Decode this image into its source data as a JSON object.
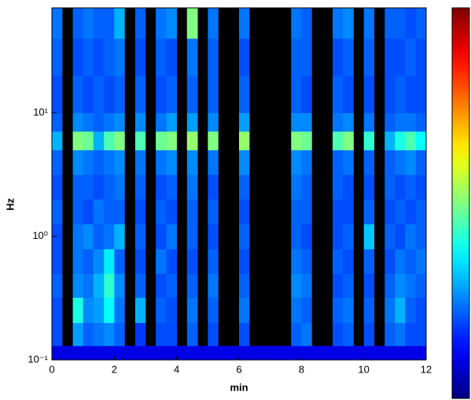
{
  "chart_data": {
    "type": "heatmap",
    "x_label": "min",
    "y_label": "Hz",
    "log_y": true,
    "xlim": [
      0,
      12
    ],
    "xticks": [
      0,
      2,
      4,
      6,
      8,
      10,
      12
    ],
    "ylim": [
      0.1,
      70.8
    ],
    "yticks": [
      {
        "value": 0.1,
        "label": "10⁻¹"
      },
      {
        "value": 1,
        "label": "10⁰"
      },
      {
        "value": 10,
        "label": "10¹"
      }
    ],
    "zlim": [
      0,
      1
    ],
    "colormap": "jet",
    "missing_color": "#000000",
    "xbins": [
      0,
      0.33,
      0.67,
      1,
      1.33,
      1.67,
      2,
      2.33,
      2.67,
      3,
      3.33,
      3.67,
      4,
      4.33,
      4.67,
      5,
      5.33,
      5.67,
      6,
      6.33,
      6.67,
      7,
      7.33,
      7.67,
      8,
      8.33,
      8.67,
      9,
      9.33,
      9.67,
      10,
      10.33,
      10.67,
      11,
      11.33,
      11.67,
      12
    ],
    "ybins": [
      0.1,
      0.13,
      0.2,
      0.32,
      0.5,
      0.79,
      1.26,
      2,
      3.16,
      5,
      7.08,
      10,
      20,
      40,
      70.8
    ],
    "z": [
      [
        0.1,
        0.1,
        0.1,
        0.1,
        0.1,
        0.1,
        0.1,
        0.1,
        0.1,
        0.1,
        0.1,
        0.1,
        0.1,
        0.1,
        0.1,
        0.1,
        0.1,
        0.1,
        0.1,
        0.1,
        0.1,
        0.1,
        0.1,
        0.1,
        0.1,
        0.1,
        0.1,
        0.1,
        0.1,
        0.1,
        0.1,
        0.1,
        0.1,
        0.1,
        0.1,
        0.1
      ],
      [
        0.2,
        null,
        0.28,
        0.22,
        0.24,
        0.26,
        0.22,
        null,
        0.18,
        null,
        0.2,
        0.2,
        null,
        0.22,
        null,
        0.2,
        null,
        null,
        0.2,
        null,
        null,
        null,
        null,
        0.22,
        0.24,
        null,
        null,
        0.2,
        0.22,
        null,
        0.2,
        null,
        0.22,
        0.24,
        0.2,
        0.2
      ],
      [
        0.2,
        null,
        0.4,
        0.26,
        0.28,
        0.38,
        0.24,
        null,
        0.3,
        null,
        0.22,
        0.2,
        null,
        0.24,
        null,
        0.22,
        null,
        null,
        0.24,
        null,
        null,
        null,
        null,
        0.24,
        0.22,
        null,
        null,
        0.22,
        0.24,
        null,
        0.22,
        null,
        0.24,
        0.3,
        0.22,
        0.2
      ],
      [
        0.22,
        null,
        0.26,
        0.24,
        0.3,
        0.42,
        0.26,
        null,
        0.22,
        null,
        0.2,
        0.22,
        null,
        0.22,
        null,
        0.24,
        null,
        null,
        0.22,
        null,
        null,
        null,
        null,
        0.26,
        0.24,
        null,
        null,
        0.2,
        0.22,
        null,
        0.2,
        null,
        0.22,
        0.26,
        0.24,
        0.22
      ],
      [
        0.2,
        null,
        0.24,
        0.22,
        0.26,
        0.36,
        0.22,
        null,
        0.2,
        null,
        0.24,
        0.2,
        null,
        0.2,
        null,
        0.22,
        null,
        null,
        0.2,
        null,
        null,
        null,
        null,
        0.24,
        0.22,
        null,
        null,
        0.22,
        0.2,
        null,
        0.22,
        null,
        0.2,
        0.24,
        0.22,
        0.24
      ],
      [
        0.2,
        null,
        0.24,
        0.26,
        0.22,
        0.24,
        0.3,
        null,
        0.22,
        null,
        0.2,
        0.24,
        null,
        0.22,
        null,
        0.2,
        null,
        null,
        0.22,
        null,
        null,
        null,
        null,
        0.22,
        0.2,
        null,
        null,
        0.2,
        0.22,
        null,
        0.32,
        null,
        0.22,
        0.2,
        0.24,
        0.22
      ],
      [
        0.22,
        null,
        0.22,
        0.2,
        0.24,
        0.22,
        0.22,
        null,
        0.2,
        null,
        0.22,
        0.2,
        null,
        0.22,
        null,
        0.22,
        null,
        null,
        0.2,
        null,
        null,
        null,
        null,
        0.22,
        0.22,
        null,
        null,
        0.2,
        0.2,
        null,
        0.22,
        null,
        0.2,
        0.22,
        0.2,
        0.22
      ],
      [
        0.2,
        null,
        0.22,
        0.22,
        0.2,
        0.22,
        0.24,
        null,
        0.22,
        null,
        0.2,
        0.22,
        null,
        0.24,
        null,
        0.2,
        null,
        null,
        0.22,
        null,
        null,
        null,
        null,
        0.24,
        0.22,
        null,
        null,
        0.22,
        0.2,
        null,
        0.2,
        null,
        0.22,
        0.2,
        0.22,
        0.2
      ],
      [
        0.22,
        null,
        0.26,
        0.24,
        0.22,
        0.24,
        0.26,
        null,
        0.24,
        null,
        0.24,
        0.26,
        null,
        0.26,
        null,
        0.24,
        null,
        null,
        0.26,
        null,
        null,
        null,
        null,
        0.26,
        0.24,
        null,
        null,
        0.22,
        0.24,
        null,
        0.22,
        null,
        0.22,
        0.24,
        0.26,
        0.22
      ],
      [
        0.3,
        null,
        0.5,
        0.48,
        0.3,
        0.45,
        0.5,
        null,
        0.45,
        null,
        0.48,
        0.5,
        null,
        0.52,
        null,
        0.5,
        null,
        null,
        0.52,
        null,
        null,
        null,
        null,
        0.5,
        0.48,
        null,
        null,
        0.45,
        0.5,
        null,
        0.42,
        null,
        0.3,
        0.4,
        0.45,
        0.38
      ],
      [
        0.22,
        null,
        0.26,
        0.24,
        0.22,
        0.24,
        0.26,
        null,
        0.26,
        null,
        0.24,
        0.28,
        null,
        0.28,
        null,
        0.26,
        null,
        null,
        0.28,
        null,
        null,
        null,
        null,
        0.26,
        0.26,
        null,
        null,
        0.24,
        0.26,
        null,
        0.24,
        null,
        0.22,
        0.24,
        0.24,
        0.22
      ],
      [
        0.2,
        null,
        0.22,
        0.2,
        0.22,
        0.2,
        0.22,
        null,
        0.22,
        null,
        0.2,
        0.22,
        null,
        0.22,
        null,
        0.22,
        null,
        null,
        0.22,
        null,
        null,
        null,
        null,
        0.22,
        0.2,
        null,
        null,
        0.22,
        0.2,
        null,
        0.2,
        null,
        0.2,
        0.22,
        0.2,
        0.2
      ],
      [
        0.22,
        null,
        0.2,
        0.22,
        0.2,
        0.22,
        0.24,
        null,
        0.2,
        null,
        0.22,
        0.2,
        null,
        0.24,
        null,
        0.22,
        null,
        null,
        0.2,
        null,
        null,
        null,
        null,
        0.22,
        0.22,
        null,
        null,
        0.2,
        0.22,
        null,
        0.22,
        null,
        0.2,
        0.2,
        0.22,
        0.2
      ],
      [
        0.24,
        null,
        0.22,
        0.24,
        0.22,
        0.22,
        0.3,
        null,
        0.22,
        null,
        0.24,
        0.26,
        null,
        0.5,
        null,
        0.24,
        null,
        null,
        0.24,
        null,
        null,
        null,
        null,
        0.24,
        0.22,
        null,
        null,
        0.24,
        0.26,
        null,
        0.24,
        null,
        0.22,
        0.22,
        0.2,
        0.22
      ]
    ]
  }
}
